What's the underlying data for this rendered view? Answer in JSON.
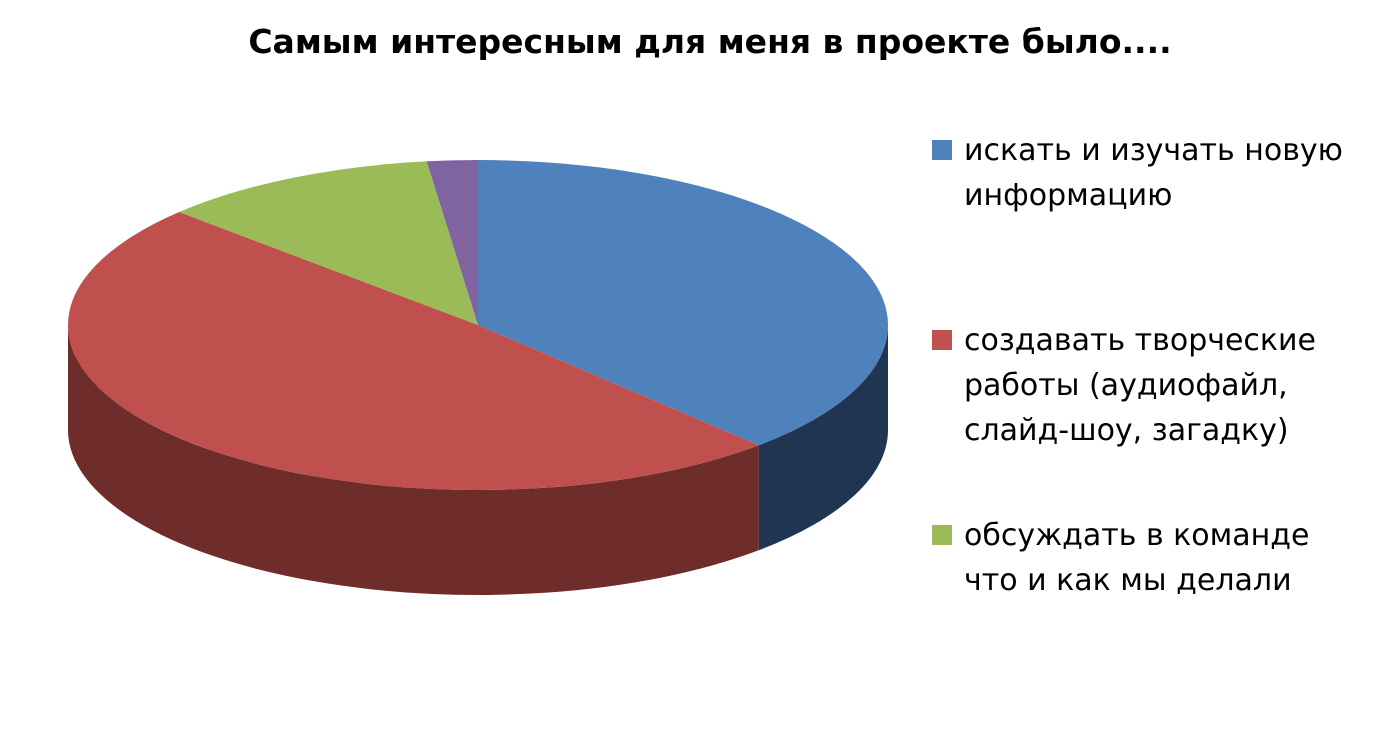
{
  "chart_data": {
    "type": "pie3d",
    "title": "Самым интересным для меня в проекте было....",
    "categories": [
      "искать и изучать новую информацию",
      "создавать творческие работы (аудиофайл, слайд-шоу, загадку)",
      "обсуждать в команде что и как мы делали",
      null
    ],
    "values": [
      38,
      49,
      11,
      2
    ],
    "colors": [
      "#4f81bd",
      "#c0504d",
      "#9bbb59",
      "#8064a2"
    ],
    "side_colors": [
      "#1f3552",
      "#6e2c2a",
      "#5a6e33",
      "#4a3a5e"
    ]
  }
}
